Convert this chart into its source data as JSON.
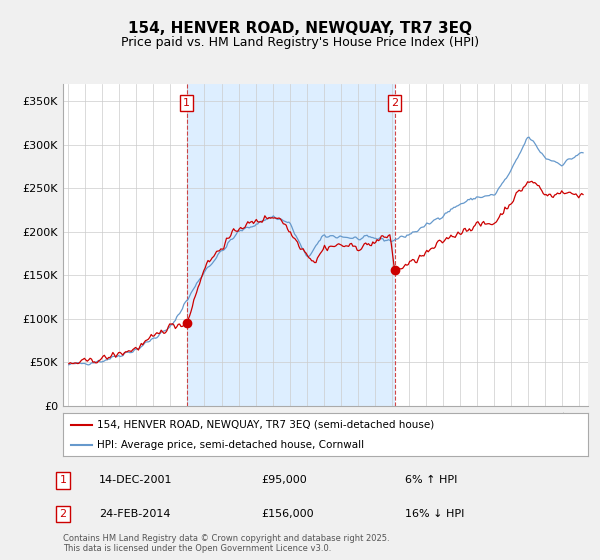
{
  "title": "154, HENVER ROAD, NEWQUAY, TR7 3EQ",
  "subtitle": "Price paid vs. HM Land Registry's House Price Index (HPI)",
  "title_fontsize": 11,
  "subtitle_fontsize": 9,
  "background_color": "#f0f0f0",
  "plot_background": "#ffffff",
  "shade_color": "#ddeeff",
  "ylabel_ticks": [
    "£0",
    "£50K",
    "£100K",
    "£150K",
    "£200K",
    "£250K",
    "£300K",
    "£350K"
  ],
  "ytick_values": [
    0,
    50000,
    100000,
    150000,
    200000,
    250000,
    300000,
    350000
  ],
  "ylim": [
    0,
    370000
  ],
  "xlim_start": 1994.7,
  "xlim_end": 2025.5,
  "red_line_label": "154, HENVER ROAD, NEWQUAY, TR7 3EQ (semi-detached house)",
  "blue_line_label": "HPI: Average price, semi-detached house, Cornwall",
  "sale1_date": "14-DEC-2001",
  "sale1_price": "£95,000",
  "sale1_hpi": "6% ↑ HPI",
  "sale1_year": 2001.96,
  "sale1_value": 95000,
  "sale2_date": "24-FEB-2014",
  "sale2_price": "£156,000",
  "sale2_hpi": "16% ↓ HPI",
  "sale2_year": 2014.15,
  "sale2_value": 156000,
  "footer": "Contains HM Land Registry data © Crown copyright and database right 2025.\nThis data is licensed under the Open Government Licence v3.0.",
  "red_color": "#cc0000",
  "blue_color": "#6699cc",
  "vline_color": "#cc3333",
  "grid_color": "#cccccc"
}
